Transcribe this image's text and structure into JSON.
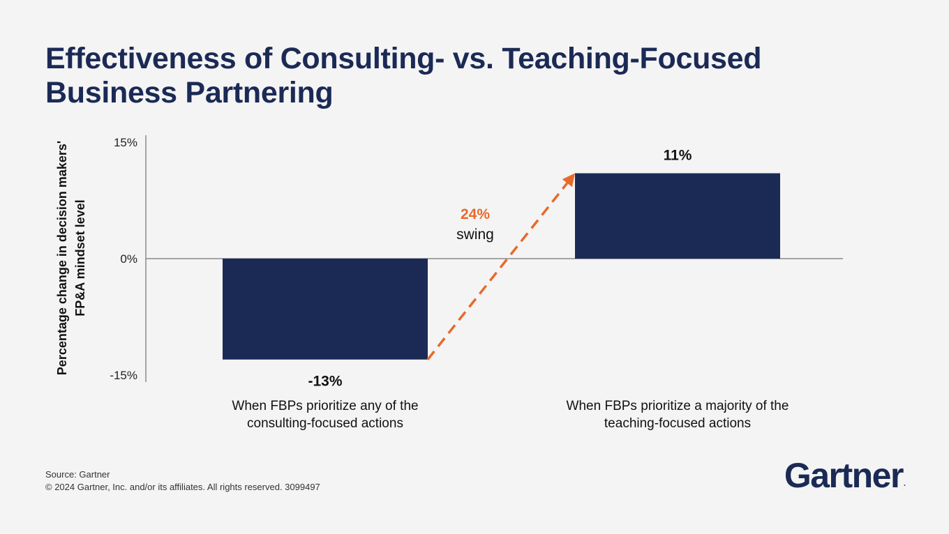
{
  "title_lines": [
    "Effectiveness of Consulting- vs. Teaching-Focused",
    "Business Partnering"
  ],
  "colors": {
    "bar": "#1b2a55",
    "arrow": "#e8692a",
    "axis": "#8a8a8a",
    "title": "#1b2a55"
  },
  "chart_data": {
    "type": "bar",
    "title": "Effectiveness of Consulting- vs. Teaching-Focused Business Partnering",
    "ylabel_lines": [
      "Percentage change in decision makers'",
      "FP&A mindset level"
    ],
    "ylim": [
      -15,
      15
    ],
    "yticks": [
      15,
      0,
      -15
    ],
    "ytick_labels": [
      "15%",
      "0%",
      "-15%"
    ],
    "categories": [
      [
        "When FBPs prioritize any of the",
        "consulting-focused actions"
      ],
      [
        "When FBPs prioritize a majority of the",
        "teaching-focused actions"
      ]
    ],
    "values": [
      -13,
      11
    ],
    "data_labels": [
      "-13%",
      "11%"
    ],
    "annotation": {
      "value_label": "24%",
      "text": "swing"
    },
    "grid": false
  },
  "footer": {
    "source": "Source: Gartner",
    "copyright": "© 2024 Gartner, Inc. and/or its affiliates. All rights reserved. 3099497"
  },
  "logo": {
    "text": "Gartner",
    "mark": "."
  }
}
